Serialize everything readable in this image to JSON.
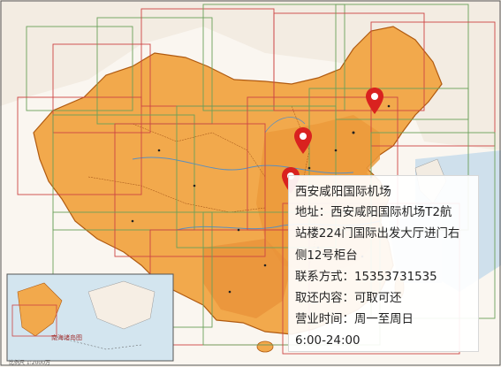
{
  "map": {
    "inset_caption": "南海诸岛图",
    "scale_text": "比例尺 1:2000万"
  },
  "location_pins": [
    {
      "name": "pin-northeast",
      "color": "#d9221f"
    },
    {
      "name": "pin-central",
      "color": "#d9221f"
    },
    {
      "name": "pin-xian",
      "color": "#d9221f"
    }
  ],
  "info_card": {
    "title": "西安咸阳国际机场",
    "address_line1": "地址：西安咸阳国际机场T2航",
    "address_line2": "站楼224门国际出发大厅进门右",
    "address_line3": "侧12号柜台",
    "contact": "联系方式：15353731535",
    "service": "取还内容：可取可还",
    "hours_label": "营业时间：周一至周日",
    "hours_time": "6:00-24:00"
  },
  "colors": {
    "land_fill": "#f2a94c",
    "land_dark": "#e48a2a",
    "outside_land": "#f6eee4",
    "sea": "#c9dcea",
    "pin": "#d9221f"
  }
}
